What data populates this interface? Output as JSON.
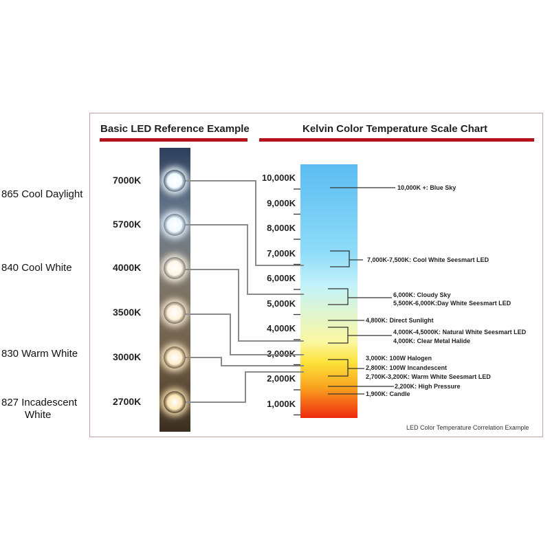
{
  "side_labels": [
    "865 Cool Daylight",
    "840 Cool White",
    "830 Warm White",
    "827 Incadescent",
    "White"
  ],
  "left_title": "Basic LED Reference Example",
  "right_title": "Kelvin Color Temperature Scale Chart",
  "led_labels": [
    "7000K",
    "5700K",
    "4000K",
    "3500K",
    "3000K",
    "2700K"
  ],
  "led_colors": [
    "#f2fbff",
    "#eef8ff",
    "#fff6e4",
    "#fff1da",
    "#ffecc8",
    "#ffe6b4"
  ],
  "scale_labels": [
    "10,000K",
    "9,000K",
    "8,000K",
    "7,000K",
    "6,000K",
    "5,000K",
    "4,000K",
    "3,000K",
    "2,000K",
    "1,000K"
  ],
  "annotations": [
    "10,000K +: Blue Sky",
    "7,000K-7,500K: Cool White Seesmart LED",
    "6,000K: Cloudy Sky",
    "5,500K-6,000K:Day White Seesmart LED",
    "4,800K: Direct Sunlight",
    "4,000K-4,5000K: Natural White Seesmart LED",
    "4,000K: Clear Metal Halide",
    "3,000K: 100W Halogen",
    "2,800K: 100W Incandescent",
    "2,700K-3,200K: Warm White Seesmart LED",
    "2,200K: High Pressure",
    "1,900K: Candle"
  ],
  "footnote": "LED Color Temperature Correlation Example",
  "colors": {
    "accent_bar": "#b3141b",
    "connector": "#8a8a8a",
    "gradient_top": "#5bbcf2",
    "gradient_bottom": "#ef2a10"
  }
}
